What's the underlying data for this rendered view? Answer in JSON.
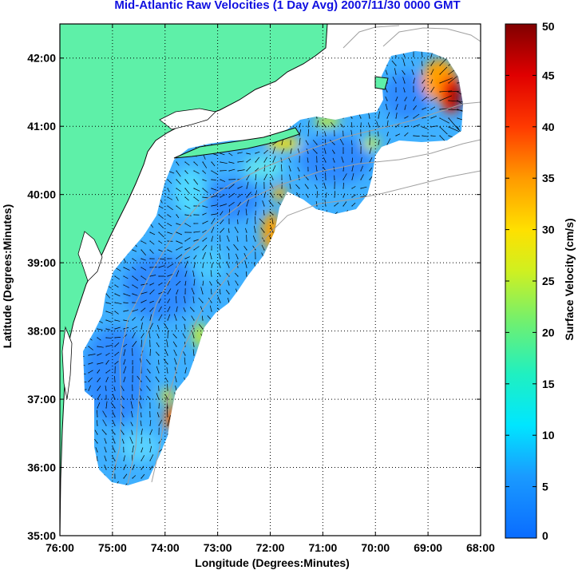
{
  "title": "Mid-Atlantic Raw Velocities (1 Day Avg) 2007/11/30 0000 GMT",
  "x_axis_label": "Longitude (Degrees:Minutes)",
  "y_axis_label": "Latitude (Degrees:Minutes)",
  "colorbar_label": "Surface Velocity (cm/s)",
  "x_ticks": [
    {
      "lon": -76,
      "label": "76:00"
    },
    {
      "lon": -75,
      "label": "75:00"
    },
    {
      "lon": -74,
      "label": "74:00"
    },
    {
      "lon": -73,
      "label": "73:00"
    },
    {
      "lon": -72,
      "label": "72:00"
    },
    {
      "lon": -71,
      "label": "71:00"
    },
    {
      "lon": -70,
      "label": "70:00"
    },
    {
      "lon": -69,
      "label": "69:00"
    },
    {
      "lon": -68,
      "label": "68:00"
    }
  ],
  "y_ticks": [
    {
      "lat": 35,
      "label": "35:00"
    },
    {
      "lat": 36,
      "label": "36:00"
    },
    {
      "lat": 37,
      "label": "37:00"
    },
    {
      "lat": 38,
      "label": "38:00"
    },
    {
      "lat": 39,
      "label": "39:00"
    },
    {
      "lat": 40,
      "label": "40:00"
    },
    {
      "lat": 41,
      "label": "41:00"
    },
    {
      "lat": 42,
      "label": "42:00"
    }
  ],
  "colorbar_ticks": [
    {
      "value": 0,
      "label": "0"
    },
    {
      "value": 5,
      "label": "5"
    },
    {
      "value": 10,
      "label": "10"
    },
    {
      "value": 15,
      "label": "15"
    },
    {
      "value": 20,
      "label": "20"
    },
    {
      "value": 25,
      "label": "25"
    },
    {
      "value": 30,
      "label": "30"
    },
    {
      "value": 35,
      "label": "35"
    },
    {
      "value": 40,
      "label": "40"
    },
    {
      "value": 45,
      "label": "45"
    },
    {
      "value": 50,
      "label": "50"
    }
  ],
  "extent": {
    "lon_min": -76,
    "lon_max": -68,
    "lat_min": 35,
    "lat_max": 42.5
  },
  "colorbar_range": [
    0,
    50
  ],
  "colors": {
    "land": "#5ef0a8",
    "coast": "#0a0a0a",
    "bathymetry": "#a0a0a0",
    "arrows": "#000000",
    "title": "#1010e0"
  },
  "gridlines": true
}
